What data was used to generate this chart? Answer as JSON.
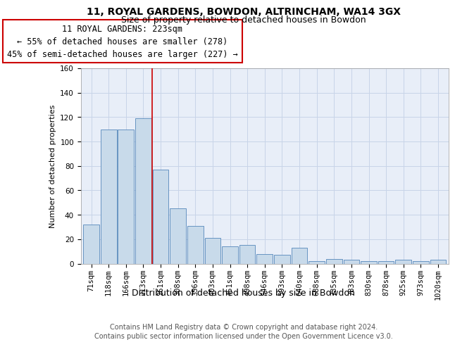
{
  "title_line1": "11, ROYAL GARDENS, BOWDON, ALTRINCHAM, WA14 3GX",
  "title_line2": "Size of property relative to detached houses in Bowdon",
  "xlabel": "Distribution of detached houses by size in Bowdon",
  "ylabel": "Number of detached properties",
  "footer_line1": "Contains HM Land Registry data © Crown copyright and database right 2024.",
  "footer_line2": "Contains public sector information licensed under the Open Government Licence v3.0.",
  "bar_labels": [
    "71sqm",
    "118sqm",
    "166sqm",
    "213sqm",
    "261sqm",
    "308sqm",
    "356sqm",
    "403sqm",
    "451sqm",
    "498sqm",
    "546sqm",
    "593sqm",
    "640sqm",
    "688sqm",
    "735sqm",
    "783sqm",
    "830sqm",
    "878sqm",
    "925sqm",
    "973sqm",
    "1020sqm"
  ],
  "bar_heights": [
    32,
    110,
    110,
    119,
    77,
    45,
    31,
    21,
    14,
    15,
    8,
    7,
    13,
    2,
    4,
    3,
    2,
    2,
    3,
    2,
    3
  ],
  "annotation_text": "11 ROYAL GARDENS: 223sqm\n← 55% of detached houses are smaller (278)\n45% of semi-detached houses are larger (227) →",
  "vline_position": 3.5,
  "bar_color": "#c8daea",
  "bar_edge_color": "#5588bb",
  "vline_color": "#cc0000",
  "grid_color": "#c8d4e8",
  "ylim_max": 160,
  "ytick_step": 20,
  "bg_color": "#e8eef8",
  "annotation_fontsize": 8.5,
  "title1_fontsize": 10,
  "title2_fontsize": 9,
  "xlabel_fontsize": 9,
  "ylabel_fontsize": 8,
  "tick_fontsize": 7.5,
  "footer_fontsize": 7
}
